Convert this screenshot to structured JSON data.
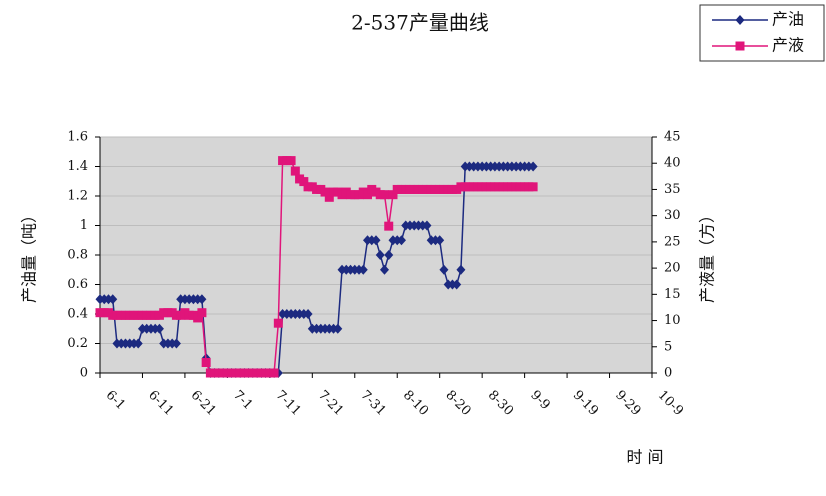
{
  "chart_data": {
    "type": "line",
    "title": "2-537产量曲线",
    "x_label": "时 间",
    "y_label": "产油量（吨）",
    "y2_label": "产液量（方）",
    "x": [
      0,
      1,
      2,
      3,
      4,
      5,
      6,
      7,
      8,
      9,
      10,
      11,
      12,
      13,
      14,
      15,
      16,
      17,
      18,
      19,
      20,
      21,
      22,
      23,
      24,
      25,
      26,
      27,
      28,
      29,
      30,
      31,
      32,
      33,
      34,
      35,
      36,
      37,
      38,
      39,
      40,
      41,
      42,
      43,
      44,
      45,
      46,
      47,
      48,
      49,
      50,
      51,
      52,
      53,
      54,
      55,
      56,
      57,
      58,
      59,
      60,
      61,
      62,
      63,
      64,
      65,
      66,
      67,
      68,
      69,
      70,
      71,
      72,
      73,
      74,
      75,
      76,
      77,
      78,
      79,
      80,
      81,
      82,
      83,
      84,
      85,
      86,
      87,
      88,
      89,
      90,
      91,
      92,
      93,
      94,
      95,
      96,
      97,
      98,
      99,
      100,
      101,
      102
    ],
    "xlim": [
      0,
      130
    ],
    "xticks": [
      {
        "value": 0,
        "label": "6-1"
      },
      {
        "value": 10,
        "label": "6-11"
      },
      {
        "value": 20,
        "label": "6-21"
      },
      {
        "value": 30,
        "label": "7-1"
      },
      {
        "value": 40,
        "label": "7-11"
      },
      {
        "value": 50,
        "label": "7-21"
      },
      {
        "value": 60,
        "label": "7-31"
      },
      {
        "value": 70,
        "label": "8-10"
      },
      {
        "value": 80,
        "label": "8-20"
      },
      {
        "value": 90,
        "label": "8-30"
      },
      {
        "value": 100,
        "label": "9-9"
      },
      {
        "value": 110,
        "label": "9-19"
      },
      {
        "value": 120,
        "label": "9-29"
      },
      {
        "value": 130,
        "label": "10-9"
      }
    ],
    "ylim": [
      0,
      1.6
    ],
    "yticks": [
      0,
      0.2,
      0.4,
      0.6,
      0.8,
      1,
      1.2,
      1.4,
      1.6
    ],
    "y2lim": [
      0,
      45
    ],
    "y2ticks": [
      0,
      5,
      10,
      15,
      20,
      25,
      30,
      35,
      40,
      45
    ],
    "grid": true,
    "legend": "top-right",
    "series": [
      {
        "name": "产油",
        "color": "#1c2a80",
        "marker": "diamond",
        "values": [
          0.5,
          0.5,
          0.5,
          0.5,
          0.2,
          0.2,
          0.2,
          0.2,
          0.2,
          0.2,
          0.3,
          0.3,
          0.3,
          0.3,
          0.3,
          0.2,
          0.2,
          0.2,
          0.2,
          0.5,
          0.5,
          0.5,
          0.5,
          0.5,
          0.5,
          0.1,
          0,
          0,
          0,
          0,
          0,
          0,
          0,
          0,
          0,
          0,
          0,
          0,
          0,
          0,
          0,
          0,
          0,
          0.4,
          0.4,
          0.4,
          0.4,
          0.4,
          0.4,
          0.4,
          0.3,
          0.3,
          0.3,
          0.3,
          0.3,
          0.3,
          0.3,
          0.7,
          0.7,
          0.7,
          0.7,
          0.7,
          0.7,
          0.9,
          0.9,
          0.9,
          0.8,
          0.7,
          0.8,
          0.9,
          0.9,
          0.9,
          1,
          1,
          1,
          1,
          1,
          1,
          0.9,
          0.9,
          0.9,
          0.7,
          0.6,
          0.6,
          0.6,
          0.7,
          1.4,
          1.4,
          1.4,
          1.4,
          1.4,
          1.4,
          1.4,
          1.4,
          1.4,
          1.4,
          1.4,
          1.4,
          1.4,
          1.4,
          1.4,
          1.4,
          1.4
        ]
      },
      {
        "name": "产液",
        "color": "#e0157a",
        "marker": "square",
        "axis": "y2",
        "values": [
          11.5,
          11.5,
          11.5,
          11,
          11,
          11,
          11,
          11,
          11,
          11,
          11,
          11,
          11,
          11,
          11,
          11.5,
          11.5,
          11.5,
          11,
          11,
          11.5,
          11,
          11,
          10.5,
          11.5,
          2,
          0,
          0,
          0,
          0,
          0,
          0,
          0,
          0,
          0,
          0,
          0,
          0,
          0,
          0,
          0,
          0,
          9.5,
          40.5,
          40.5,
          40.5,
          38.5,
          37,
          36.5,
          35.5,
          35.5,
          35,
          35,
          34.5,
          33.5,
          34.5,
          34.5,
          34,
          34.5,
          34,
          34,
          34,
          34.5,
          34,
          35,
          34.5,
          34,
          34,
          28,
          34,
          35,
          35,
          35,
          35,
          35,
          35,
          35,
          35,
          35,
          35,
          35,
          35,
          35,
          35,
          35,
          35.5,
          35.5,
          35.5,
          35.5,
          35.5,
          35.5,
          35.5,
          35.5,
          35.5,
          35.5,
          35.5,
          35.5,
          35.5,
          35.5,
          35.5,
          35.5,
          35.5,
          35.5
        ]
      }
    ]
  }
}
